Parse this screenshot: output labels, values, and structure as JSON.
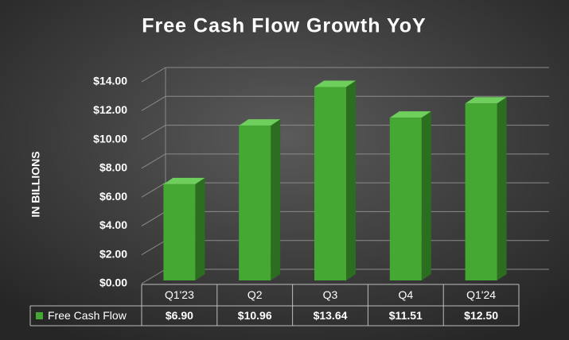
{
  "chart_data": {
    "type": "bar",
    "title": "Free Cash Flow Growth YoY",
    "y_label": "IN BILLIONS",
    "categories": [
      "Q1'23",
      "Q2",
      "Q3",
      "Q4",
      "Q1'24"
    ],
    "series": [
      {
        "name": "Free Cash Flow",
        "color": "#45a832",
        "values": [
          6.9,
          10.96,
          13.64,
          11.51,
          12.5
        ],
        "value_labels": [
          "$6.90",
          "$10.96",
          "$13.64",
          "$11.51",
          "$12.50"
        ]
      }
    ],
    "ylim": [
      0,
      14
    ],
    "yticks": [
      {
        "value": 0,
        "label": "$0.00"
      },
      {
        "value": 2,
        "label": "$2.00"
      },
      {
        "value": 4,
        "label": "$4.00"
      },
      {
        "value": 6,
        "label": "$6.00"
      },
      {
        "value": 8,
        "label": "$8.00"
      },
      {
        "value": 10,
        "label": "$10.00"
      },
      {
        "value": 12,
        "label": "$12.00"
      },
      {
        "value": 14,
        "label": "$14.00"
      }
    ],
    "grid": true
  }
}
